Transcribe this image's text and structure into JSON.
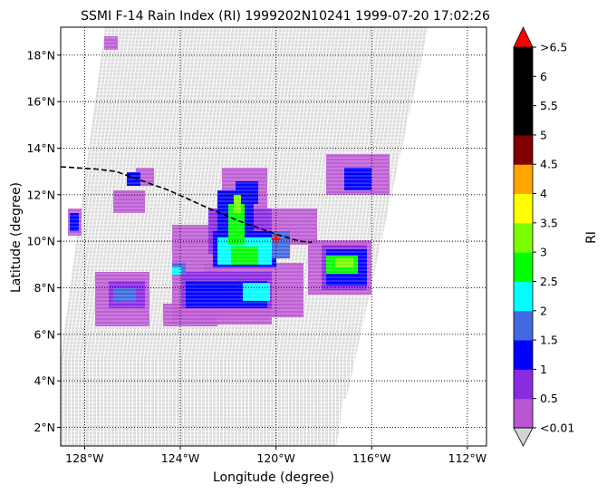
{
  "figure": {
    "title": "SSMI F-14 Rain Index (RI) 1999202N10241 1999-07-20 17:02:26",
    "xlabel": "Longitude (degree)",
    "ylabel": "Latitude (degree)",
    "colorbar_label": "RI"
  },
  "map": {
    "lon_range": [
      -129.0,
      -111.2
    ],
    "lat_range": [
      1.2,
      19.2
    ],
    "x_ticks": [
      {
        "value": -128,
        "label": "128°W"
      },
      {
        "value": -124,
        "label": "124°W"
      },
      {
        "value": -120,
        "label": "120°W"
      },
      {
        "value": -116,
        "label": "116°W"
      },
      {
        "value": -112,
        "label": "112°W"
      }
    ],
    "y_ticks": [
      {
        "value": 2,
        "label": "2°N"
      },
      {
        "value": 4,
        "label": "4°N"
      },
      {
        "value": 6,
        "label": "6°N"
      },
      {
        "value": 8,
        "label": "8°N"
      },
      {
        "value": 10,
        "label": "10°N"
      },
      {
        "value": 12,
        "label": "12°N"
      },
      {
        "value": 14,
        "label": "14°N"
      },
      {
        "value": 16,
        "label": "16°N"
      },
      {
        "value": 18,
        "label": "18°N"
      }
    ],
    "grid": "dotted",
    "swath_color": "#d3d3d3",
    "storm_center": {
      "lon": -120.0,
      "lat": 10.1,
      "color": "#ff0000"
    },
    "track": {
      "style": "dashed",
      "color": "#000000",
      "points": [
        [
          -129.0,
          13.2
        ],
        [
          -127.5,
          13.1
        ],
        [
          -126.7,
          13.0
        ],
        [
          -125.6,
          12.6
        ],
        [
          -124.5,
          12.2
        ],
        [
          -123.0,
          11.5
        ],
        [
          -121.5,
          10.85
        ],
        [
          -120.0,
          10.3
        ],
        [
          -119.0,
          10.0
        ],
        [
          -118.5,
          9.95
        ]
      ]
    }
  },
  "colorbar": {
    "levels": [
      {
        "label": "<0.01",
        "color": "#ba55d3"
      },
      {
        "label": "0.5",
        "color": "#8a2be2"
      },
      {
        "label": "1",
        "color": "#0000ff"
      },
      {
        "label": "1.5",
        "color": "#4169e1"
      },
      {
        "label": "2",
        "color": "#00ffff"
      },
      {
        "label": "2.5",
        "color": "#00ff00"
      },
      {
        "label": "3",
        "color": "#7cfc00"
      },
      {
        "label": "3.5",
        "color": "#ffff00"
      },
      {
        "label": "4",
        "color": "#ffa500"
      },
      {
        "label": "4.5",
        "color": "#800000"
      },
      {
        "label": "5",
        "color": "#000000"
      },
      {
        "label": "5.5",
        "color": "#000000"
      },
      {
        "label": "6",
        "color": "#000000"
      }
    ],
    "top_label": ">6.5",
    "under_color": "#d3d3d3",
    "over_color": "#ff0000"
  }
}
